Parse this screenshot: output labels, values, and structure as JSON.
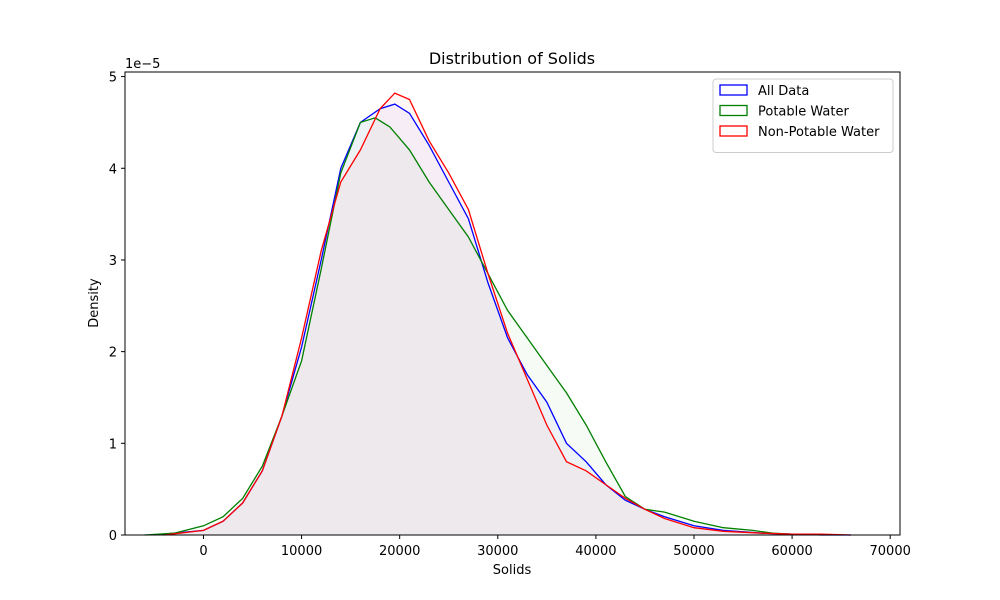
{
  "chart_data": {
    "type": "area",
    "title": "Distribution of Solids",
    "xlabel": "Solids",
    "ylabel": "Density",
    "y_offset_label": "1e−5",
    "xlim": [
      -8000,
      71000
    ],
    "ylim": [
      0,
      5.05
    ],
    "x_ticks": [
      0,
      10000,
      20000,
      30000,
      40000,
      50000,
      60000,
      70000
    ],
    "y_ticks": [
      0,
      1,
      2,
      3,
      4,
      5
    ],
    "grid": false,
    "legend_position": "top-right",
    "series": [
      {
        "name": "All Data",
        "color": "#0000ff",
        "fill": "#0000ff",
        "x": [
          -5000,
          0,
          2000,
          4000,
          6000,
          8000,
          10000,
          12000,
          14000,
          16000,
          18000,
          19500,
          21000,
          23000,
          25000,
          27000,
          29000,
          31000,
          33000,
          35000,
          37000,
          39000,
          41000,
          43000,
          45000,
          47000,
          50000,
          53000,
          57000,
          60000,
          63000,
          66000
        ],
        "y": [
          0.0,
          0.05,
          0.15,
          0.35,
          0.7,
          1.3,
          2.05,
          3.0,
          4.0,
          4.5,
          4.65,
          4.7,
          4.6,
          4.25,
          3.85,
          3.45,
          2.75,
          2.15,
          1.75,
          1.45,
          1.0,
          0.8,
          0.55,
          0.38,
          0.28,
          0.2,
          0.1,
          0.05,
          0.02,
          0.01,
          0.0,
          0.0
        ]
      },
      {
        "name": "Potable Water",
        "color": "#008000",
        "fill": "#008000",
        "x": [
          -6000,
          -3000,
          0,
          2000,
          4000,
          6000,
          8000,
          10000,
          12000,
          14000,
          16000,
          17500,
          19000,
          21000,
          23000,
          25000,
          27000,
          29000,
          31000,
          33000,
          35000,
          37000,
          39000,
          41000,
          43000,
          45000,
          47000,
          50000,
          53000,
          56000,
          58000,
          60000
        ],
        "y": [
          0.0,
          0.02,
          0.1,
          0.2,
          0.4,
          0.75,
          1.3,
          1.9,
          2.9,
          3.95,
          4.5,
          4.55,
          4.45,
          4.2,
          3.85,
          3.55,
          3.25,
          2.85,
          2.45,
          2.15,
          1.85,
          1.55,
          1.2,
          0.8,
          0.42,
          0.28,
          0.25,
          0.15,
          0.08,
          0.05,
          0.02,
          0.01
        ]
      },
      {
        "name": "Non-Potable Water",
        "color": "#ff0000",
        "fill": "#ff0000",
        "x": [
          -4000,
          0,
          2000,
          4000,
          6000,
          8000,
          10000,
          12000,
          14000,
          16000,
          18000,
          19500,
          21000,
          23000,
          25000,
          27000,
          29000,
          31000,
          33000,
          35000,
          37000,
          39000,
          41000,
          43000,
          45000,
          47000,
          50000,
          53000,
          57000,
          60000,
          63000,
          66000
        ],
        "y": [
          0.0,
          0.05,
          0.15,
          0.35,
          0.7,
          1.3,
          2.15,
          3.1,
          3.85,
          4.2,
          4.65,
          4.82,
          4.75,
          4.3,
          3.95,
          3.55,
          2.85,
          2.2,
          1.7,
          1.2,
          0.8,
          0.7,
          0.55,
          0.4,
          0.28,
          0.18,
          0.08,
          0.04,
          0.02,
          0.01,
          0.01,
          0.0
        ]
      }
    ]
  }
}
